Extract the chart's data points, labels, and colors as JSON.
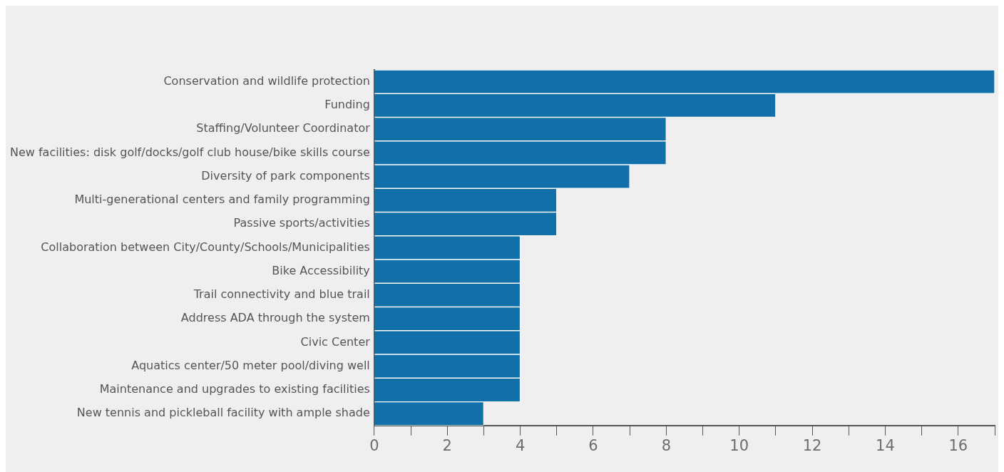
{
  "chart_data": {
    "type": "bar",
    "orientation": "horizontal",
    "categories": [
      "Conservation and wildlife protection",
      "Funding",
      "Staffing/Volunteer Coordinator",
      "New facilities: disk golf/docks/golf club house/bike skills course",
      "Diversity of park components",
      "Multi-generational centers and family programming",
      "Passive sports/activities",
      "Collaboration between City/County/Schools/Municipalities",
      "Bike Accessibility",
      "Trail connectivity and blue trail",
      "Address ADA through the system",
      "Civic Center",
      "Aquatics center/50 meter pool/diving well",
      "Maintenance and upgrades to existing facilities",
      "New tennis and pickleball facility with ample shade"
    ],
    "values": [
      17,
      11,
      8,
      8,
      7,
      5,
      5,
      4,
      4,
      4,
      4,
      4,
      4,
      4,
      3
    ],
    "color": "#116faa",
    "xlim": [
      0,
      17
    ],
    "xticks": [
      0,
      {
        "value": 1,
        "label": null
      },
      2,
      {
        "value": 3,
        "label": null
      },
      4,
      {
        "value": 5,
        "label": null
      },
      6,
      {
        "value": 7,
        "label": null
      },
      8,
      {
        "value": 9,
        "label": null
      },
      10,
      {
        "value": 11,
        "label": null
      },
      12,
      {
        "value": 13,
        "label": null
      },
      14,
      {
        "value": 15,
        "label": null
      },
      16,
      {
        "value": 17,
        "label": null
      }
    ],
    "grid": false,
    "legend": false
  }
}
